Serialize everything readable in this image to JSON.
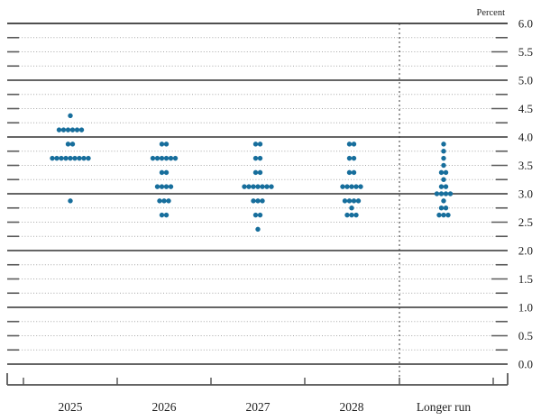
{
  "figure": {
    "percent_label": "Percent",
    "colors": {
      "dot": "#176e9c",
      "solid_grid": "#4f4f4f",
      "dotted_grid": "#a8a8a8",
      "stub": "#5a5a5a",
      "axis": "#4f4f4f",
      "separator": "#3a3a3a",
      "label_text": "#222222",
      "background": "#ffffff"
    }
  },
  "chart_data": {
    "type": "scatter",
    "subtype": "fomc-dot-plot",
    "title": "",
    "xlabel": "",
    "ylabel": "Percent",
    "ylim": [
      0.0,
      6.0
    ],
    "grid": "on",
    "grid_step": 0.25,
    "legend_position": "none",
    "categories": [
      "2025",
      "2026",
      "2027",
      "2028",
      "Longer run"
    ],
    "separator_before_category": "Longer run",
    "yticks": [
      {
        "label": "6.0",
        "value": 6.0
      },
      {
        "label": "5.5",
        "value": 5.5
      },
      {
        "label": "5.0",
        "value": 5.0
      },
      {
        "label": "4.5",
        "value": 4.5
      },
      {
        "label": "4.0",
        "value": 4.0
      },
      {
        "label": "3.5",
        "value": 3.5
      },
      {
        "label": "3.0",
        "value": 3.0
      },
      {
        "label": "2.5",
        "value": 2.5
      },
      {
        "label": "2.0",
        "value": 2.0
      },
      {
        "label": "1.5",
        "value": 1.5
      },
      {
        "label": "1.0",
        "value": 1.0
      },
      {
        "label": "0.5",
        "value": 0.5
      },
      {
        "label": "0.0",
        "value": 0.0
      }
    ],
    "series": [
      {
        "name": "2025",
        "dots": [
          {
            "value": 4.375,
            "count": 1
          },
          {
            "value": 4.125,
            "count": 6
          },
          {
            "value": 3.875,
            "count": 2
          },
          {
            "value": 3.625,
            "count": 9
          },
          {
            "value": 2.875,
            "count": 1
          }
        ]
      },
      {
        "name": "2026",
        "dots": [
          {
            "value": 3.875,
            "count": 2
          },
          {
            "value": 3.625,
            "count": 6
          },
          {
            "value": 3.375,
            "count": 2
          },
          {
            "value": 3.125,
            "count": 4
          },
          {
            "value": 2.875,
            "count": 3
          },
          {
            "value": 2.625,
            "count": 2
          }
        ]
      },
      {
        "name": "2027",
        "dots": [
          {
            "value": 3.875,
            "count": 2
          },
          {
            "value": 3.625,
            "count": 2
          },
          {
            "value": 3.375,
            "count": 2
          },
          {
            "value": 3.125,
            "count": 7
          },
          {
            "value": 2.875,
            "count": 3
          },
          {
            "value": 2.625,
            "count": 2
          },
          {
            "value": 2.375,
            "count": 1
          }
        ]
      },
      {
        "name": "2028",
        "dots": [
          {
            "value": 3.875,
            "count": 2
          },
          {
            "value": 3.625,
            "count": 2
          },
          {
            "value": 3.375,
            "count": 2
          },
          {
            "value": 3.125,
            "count": 5
          },
          {
            "value": 2.875,
            "count": 4
          },
          {
            "value": 2.75,
            "count": 1
          },
          {
            "value": 2.625,
            "count": 3
          }
        ]
      },
      {
        "name": "Longer run",
        "dots": [
          {
            "value": 3.875,
            "count": 1
          },
          {
            "value": 3.75,
            "count": 1
          },
          {
            "value": 3.625,
            "count": 1
          },
          {
            "value": 3.5,
            "count": 1
          },
          {
            "value": 3.375,
            "count": 2
          },
          {
            "value": 3.25,
            "count": 1
          },
          {
            "value": 3.125,
            "count": 2
          },
          {
            "value": 3.0,
            "count": 4
          },
          {
            "value": 2.875,
            "count": 1
          },
          {
            "value": 2.75,
            "count": 2
          },
          {
            "value": 2.625,
            "count": 3
          }
        ]
      }
    ]
  }
}
